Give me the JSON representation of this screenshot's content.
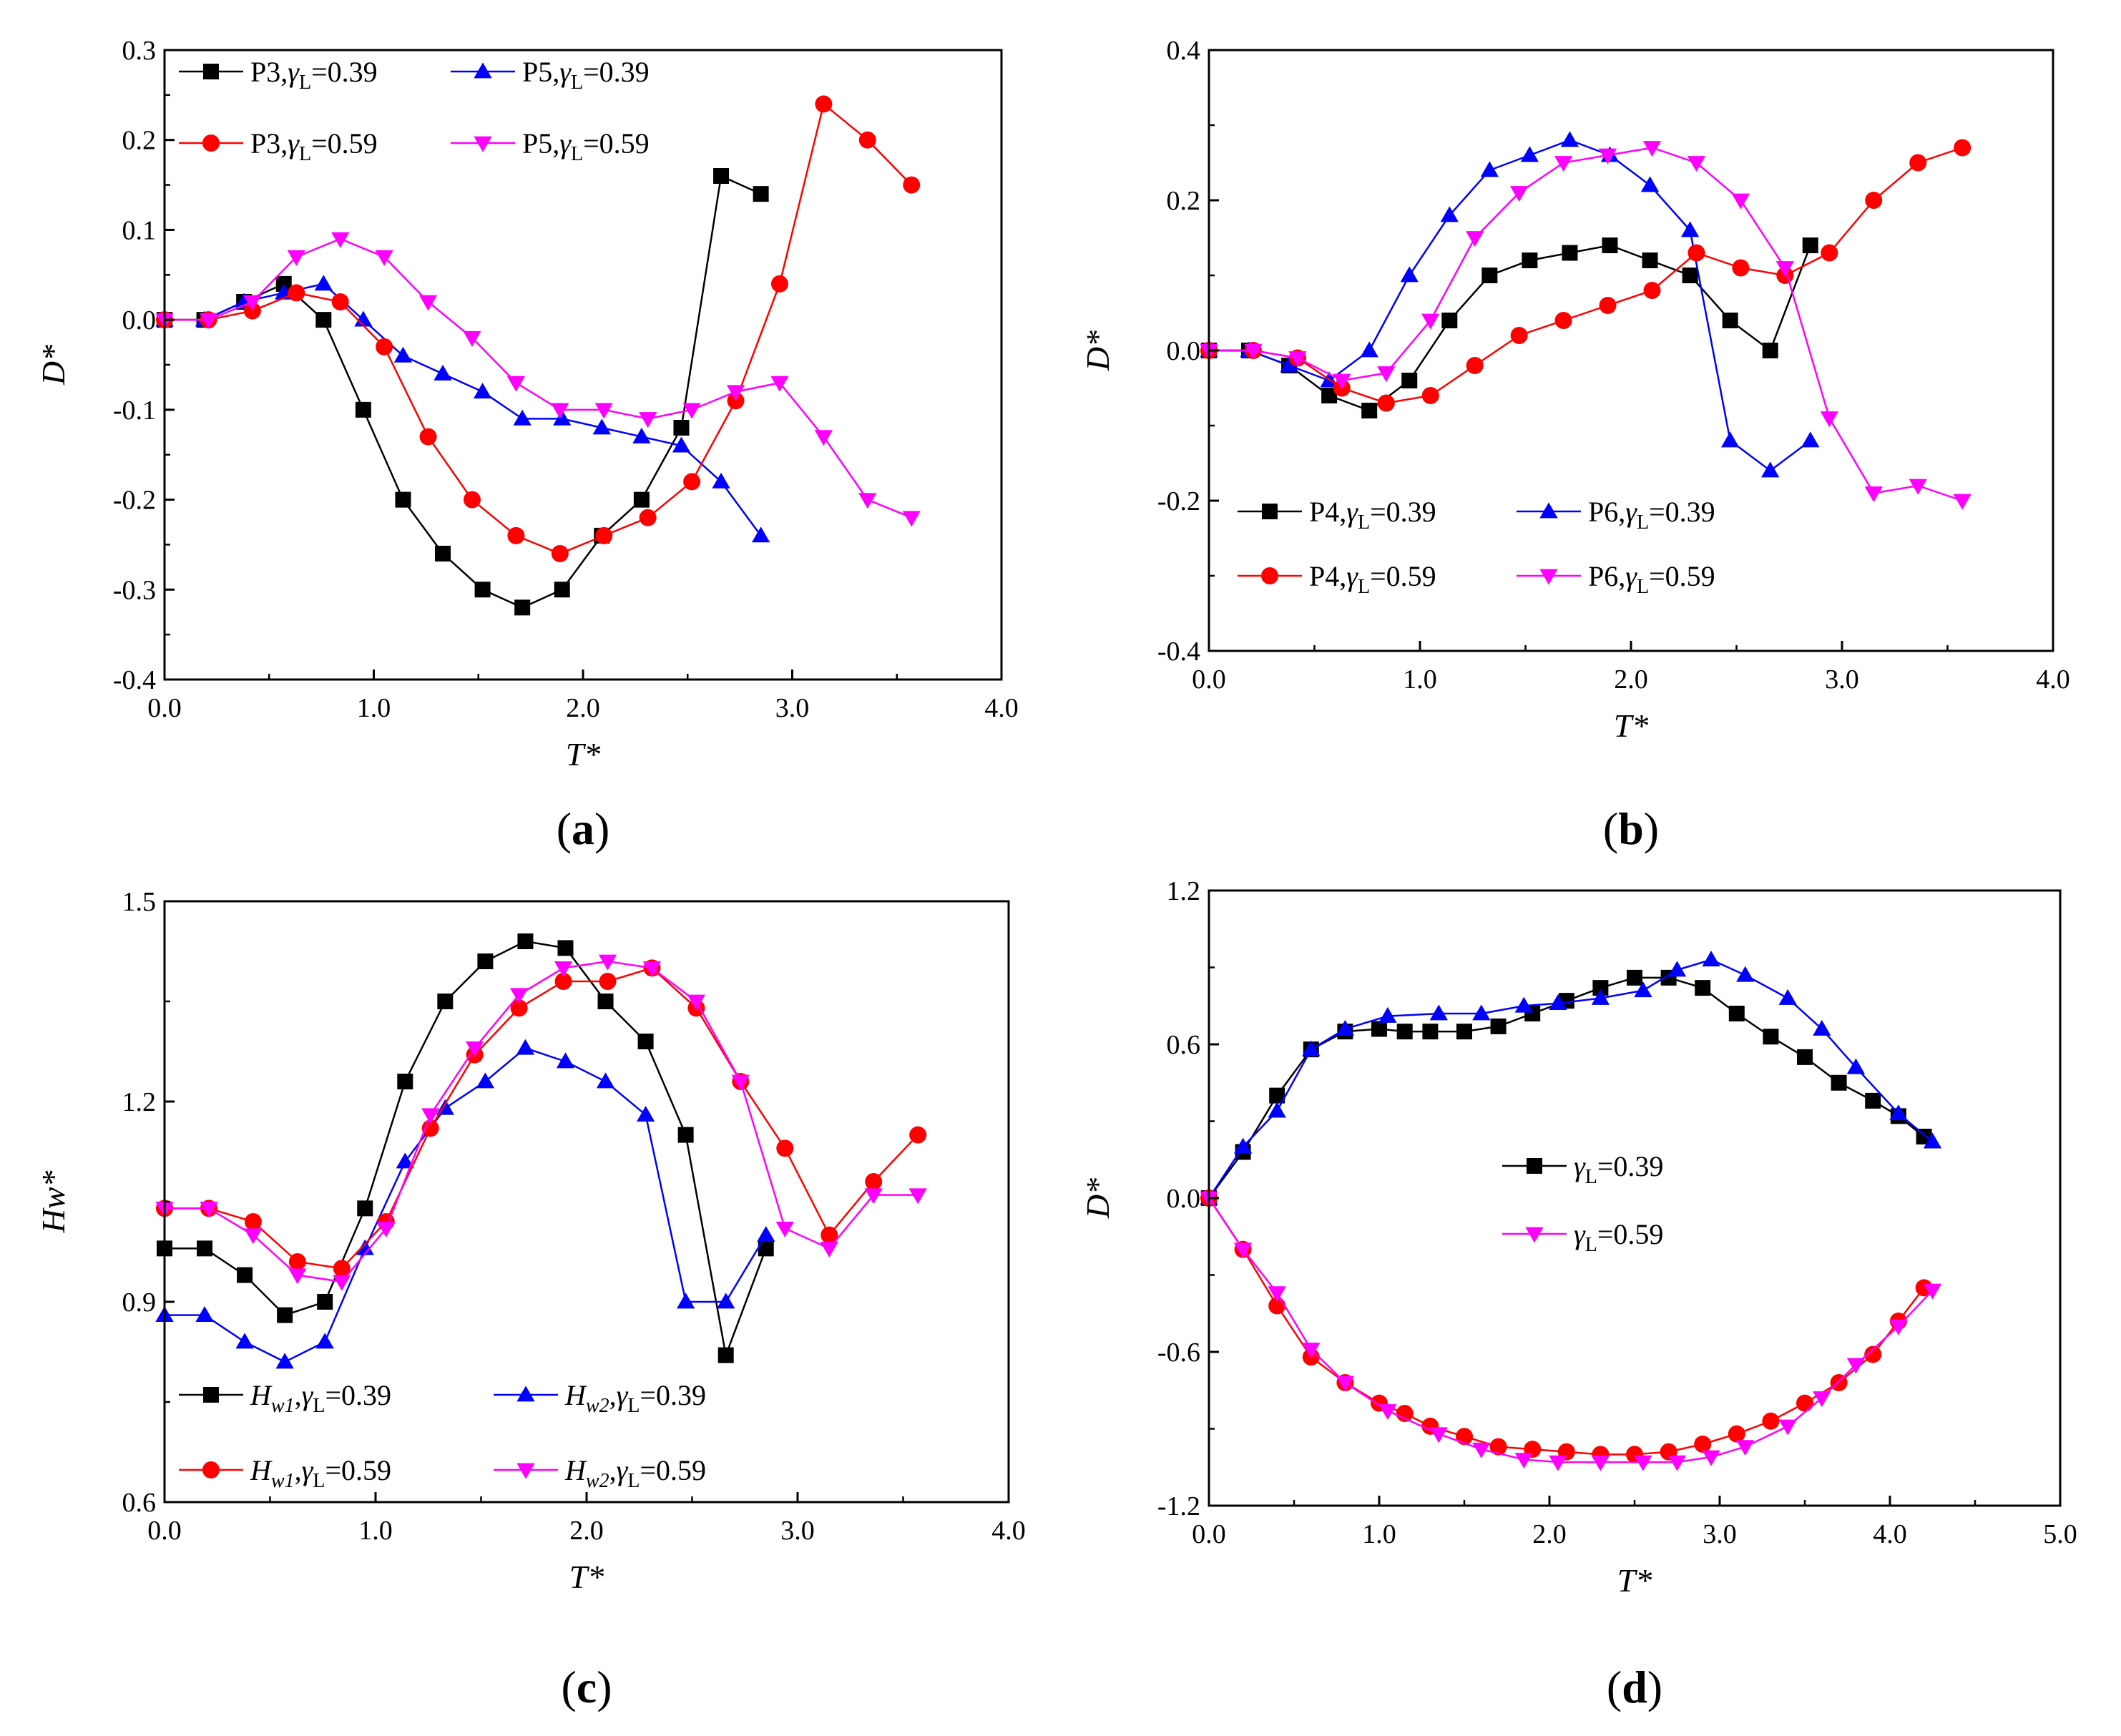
{
  "chart_data": [
    {
      "id": "a",
      "panel_label": "a",
      "type": "line",
      "xlabel": "T*",
      "ylabel": "D*",
      "xlim": [
        0,
        4
      ],
      "ylim": [
        -0.4,
        0.3
      ],
      "xticks": [
        "0.0",
        "1.0",
        "2.0",
        "3.0",
        "4.0"
      ],
      "yticks": [
        "-0.4",
        "-0.3",
        "-0.2",
        "-0.1",
        "0.0",
        "0.1",
        "0.2",
        "0.3"
      ],
      "legend_placement": "top-left",
      "series": [
        {
          "name": "P3,γL=0.39",
          "color": "#000000",
          "marker": "square",
          "x": [
            0,
            0.19,
            0.38,
            0.57,
            0.76,
            0.95,
            1.14,
            1.33,
            1.52,
            1.71,
            1.9,
            2.09,
            2.28,
            2.47,
            2.66,
            2.85
          ],
          "y": [
            0,
            0,
            0.02,
            0.04,
            0,
            -0.1,
            -0.2,
            -0.26,
            -0.3,
            -0.32,
            -0.3,
            -0.24,
            -0.2,
            -0.12,
            0.16,
            0.14
          ]
        },
        {
          "name": "P5,γL=0.39",
          "color": "#0000ff",
          "marker": "triangle-up",
          "x": [
            0,
            0.19,
            0.38,
            0.57,
            0.76,
            0.95,
            1.14,
            1.33,
            1.52,
            1.71,
            1.9,
            2.09,
            2.28,
            2.47,
            2.66,
            2.85
          ],
          "y": [
            0,
            0,
            0.02,
            0.03,
            0.04,
            0,
            -0.04,
            -0.06,
            -0.08,
            -0.11,
            -0.11,
            -0.12,
            -0.13,
            -0.14,
            -0.18,
            -0.24
          ]
        },
        {
          "name": "P3,γL=0.59",
          "color": "#ff0000",
          "marker": "circle",
          "x": [
            0,
            0.21,
            0.42,
            0.63,
            0.84,
            1.05,
            1.26,
            1.47,
            1.68,
            1.89,
            2.1,
            2.31,
            2.52,
            2.73,
            2.94,
            3.15,
            3.36,
            3.57
          ],
          "y": [
            0,
            0,
            0.01,
            0.03,
            0.02,
            -0.03,
            -0.13,
            -0.2,
            -0.24,
            -0.26,
            -0.24,
            -0.22,
            -0.18,
            -0.09,
            0.04,
            0.24,
            0.2,
            0.15
          ]
        },
        {
          "name": "P5,γL=0.59",
          "color": "#ff00ff",
          "marker": "triangle-down",
          "x": [
            0,
            0.21,
            0.42,
            0.63,
            0.84,
            1.05,
            1.26,
            1.47,
            1.68,
            1.89,
            2.1,
            2.31,
            2.52,
            2.73,
            2.94,
            3.15,
            3.36,
            3.57
          ],
          "y": [
            0,
            0,
            0.02,
            0.07,
            0.09,
            0.07,
            0.02,
            -0.02,
            -0.07,
            -0.1,
            -0.1,
            -0.11,
            -0.1,
            -0.08,
            -0.07,
            -0.13,
            -0.2,
            -0.22
          ]
        }
      ]
    },
    {
      "id": "b",
      "panel_label": "b",
      "type": "line",
      "xlabel": "T*",
      "ylabel": "D*",
      "xlim": [
        0,
        4
      ],
      "ylim": [
        -0.4,
        0.4
      ],
      "xticks": [
        "0.0",
        "1.0",
        "2.0",
        "3.0",
        "4.0"
      ],
      "yticks": [
        "-0.4",
        "-0.2",
        "0.0",
        "0.2",
        "0.4"
      ],
      "legend_placement": "bottom-left",
      "series": [
        {
          "name": "P4,γL=0.39",
          "color": "#000000",
          "marker": "square",
          "x": [
            0,
            0.19,
            0.38,
            0.57,
            0.76,
            0.95,
            1.14,
            1.33,
            1.52,
            1.71,
            1.9,
            2.09,
            2.28,
            2.47,
            2.66,
            2.85
          ],
          "y": [
            0,
            0,
            -0.02,
            -0.06,
            -0.08,
            -0.04,
            0.04,
            0.1,
            0.12,
            0.13,
            0.14,
            0.12,
            0.1,
            0.04,
            0,
            0.14
          ]
        },
        {
          "name": "P6,γL=0.39",
          "color": "#0000ff",
          "marker": "triangle-up",
          "x": [
            0,
            0.19,
            0.38,
            0.57,
            0.76,
            0.95,
            1.14,
            1.33,
            1.52,
            1.71,
            1.9,
            2.09,
            2.28,
            2.47,
            2.66,
            2.85
          ],
          "y": [
            0,
            0,
            -0.02,
            -0.04,
            0,
            0.1,
            0.18,
            0.24,
            0.26,
            0.28,
            0.26,
            0.22,
            0.16,
            -0.12,
            -0.16,
            -0.12
          ]
        },
        {
          "name": "P4,γL=0.59",
          "color": "#ff0000",
          "marker": "circle",
          "x": [
            0,
            0.21,
            0.42,
            0.63,
            0.84,
            1.05,
            1.26,
            1.47,
            1.68,
            1.89,
            2.1,
            2.31,
            2.52,
            2.73,
            2.94,
            3.15,
            3.36,
            3.57
          ],
          "y": [
            0,
            0,
            -0.01,
            -0.05,
            -0.07,
            -0.06,
            -0.02,
            0.02,
            0.04,
            0.06,
            0.08,
            0.13,
            0.11,
            0.1,
            0.13,
            0.2,
            0.25,
            0.27
          ]
        },
        {
          "name": "P6,γL=0.59",
          "color": "#ff00ff",
          "marker": "triangle-down",
          "x": [
            0,
            0.21,
            0.42,
            0.63,
            0.84,
            1.05,
            1.26,
            1.47,
            1.68,
            1.89,
            2.1,
            2.31,
            2.52,
            2.73,
            2.94,
            3.15,
            3.36,
            3.57
          ],
          "y": [
            0,
            0,
            -0.01,
            -0.04,
            -0.03,
            0.04,
            0.15,
            0.21,
            0.25,
            0.26,
            0.27,
            0.25,
            0.2,
            0.11,
            -0.09,
            -0.19,
            -0.18,
            -0.2
          ]
        }
      ]
    },
    {
      "id": "c",
      "panel_label": "c",
      "type": "line",
      "xlabel": "T*",
      "ylabel": "Hw*",
      "xlim": [
        0,
        4
      ],
      "ylim": [
        0.6,
        1.5
      ],
      "xticks": [
        "0.0",
        "1.0",
        "2.0",
        "3.0",
        "4.0"
      ],
      "yticks": [
        "0.6",
        "0.9",
        "1.2",
        "1.5"
      ],
      "legend_placement": "bottom-left",
      "series": [
        {
          "name": "Hw1,γL=0.39",
          "color": "#000000",
          "marker": "square",
          "x": [
            0,
            0.19,
            0.38,
            0.57,
            0.76,
            0.95,
            1.14,
            1.33,
            1.52,
            1.71,
            1.9,
            2.09,
            2.28,
            2.47,
            2.66,
            2.85
          ],
          "y": [
            0.98,
            0.98,
            0.94,
            0.88,
            0.9,
            1.04,
            1.23,
            1.35,
            1.41,
            1.44,
            1.43,
            1.35,
            1.29,
            1.15,
            0.82,
            0.98
          ]
        },
        {
          "name": "Hw2,γL=0.39",
          "color": "#0000ff",
          "marker": "triangle-up",
          "x": [
            0,
            0.19,
            0.38,
            0.57,
            0.76,
            0.95,
            1.14,
            1.33,
            1.52,
            1.71,
            1.9,
            2.09,
            2.28,
            2.47,
            2.66,
            2.85
          ],
          "y": [
            0.88,
            0.88,
            0.84,
            0.81,
            0.84,
            0.98,
            1.11,
            1.19,
            1.23,
            1.28,
            1.26,
            1.23,
            1.18,
            0.9,
            0.9,
            1.0
          ]
        },
        {
          "name": "Hw1,γL=0.59",
          "color": "#ff0000",
          "marker": "circle",
          "x": [
            0,
            0.21,
            0.42,
            0.63,
            0.84,
            1.05,
            1.26,
            1.47,
            1.68,
            1.89,
            2.1,
            2.31,
            2.52,
            2.73,
            2.94,
            3.15,
            3.36,
            3.57
          ],
          "y": [
            1.04,
            1.04,
            1.02,
            0.96,
            0.95,
            1.02,
            1.16,
            1.27,
            1.34,
            1.38,
            1.38,
            1.4,
            1.34,
            1.23,
            1.13,
            1.0,
            1.08,
            1.15
          ]
        },
        {
          "name": "Hw2,γL=0.59",
          "color": "#ff00ff",
          "marker": "triangle-down",
          "x": [
            0,
            0.21,
            0.42,
            0.63,
            0.84,
            1.05,
            1.26,
            1.47,
            1.68,
            1.89,
            2.1,
            2.31,
            2.52,
            2.73,
            2.94,
            3.15,
            3.36,
            3.57
          ],
          "y": [
            1.04,
            1.04,
            1.0,
            0.94,
            0.93,
            1.01,
            1.18,
            1.28,
            1.36,
            1.4,
            1.41,
            1.4,
            1.35,
            1.23,
            1.01,
            0.98,
            1.06,
            1.06
          ]
        }
      ]
    },
    {
      "id": "d",
      "panel_label": "d",
      "type": "line",
      "xlabel": "T*",
      "ylabel": "D*",
      "xlim": [
        0,
        5
      ],
      "ylim": [
        -1.2,
        1.2
      ],
      "xticks": [
        "0.0",
        "1.0",
        "2.0",
        "3.0",
        "4.0",
        "5.0"
      ],
      "yticks": [
        "-1.2",
        "-0.6",
        "0.0",
        "0.6",
        "1.2"
      ],
      "legend_placement": "center",
      "series": [
        {
          "name": "γL=0.39",
          "color": "#000000",
          "marker": "square",
          "x": [
            0,
            0.2,
            0.4,
            0.6,
            0.8,
            1.0,
            1.15,
            1.3,
            1.5,
            1.7,
            1.9,
            2.1,
            2.3,
            2.5,
            2.7,
            2.9,
            3.1,
            3.3,
            3.5,
            3.7,
            3.9,
            4.05,
            4.2
          ],
          "y": [
            0,
            0.18,
            0.4,
            0.58,
            0.65,
            0.66,
            0.65,
            0.65,
            0.65,
            0.67,
            0.72,
            0.77,
            0.82,
            0.86,
            0.86,
            0.82,
            0.72,
            0.63,
            0.55,
            0.45,
            0.38,
            0.32,
            0.24
          ]
        },
        {
          "name": "",
          "color": "#0000ff",
          "marker": "triangle-up",
          "x": [
            0,
            0.2,
            0.4,
            0.6,
            0.8,
            1.05,
            1.35,
            1.6,
            1.85,
            2.05,
            2.3,
            2.55,
            2.75,
            2.95,
            3.15,
            3.4,
            3.6,
            3.8,
            4.05,
            4.25
          ],
          "y": [
            0,
            0.2,
            0.34,
            0.58,
            0.66,
            0.71,
            0.72,
            0.72,
            0.75,
            0.76,
            0.78,
            0.81,
            0.89,
            0.93,
            0.87,
            0.78,
            0.66,
            0.51,
            0.33,
            0.22
          ]
        },
        {
          "name": "",
          "color": "#ff0000",
          "marker": "circle",
          "x": [
            0,
            0.2,
            0.4,
            0.6,
            0.8,
            1.0,
            1.15,
            1.3,
            1.5,
            1.7,
            1.9,
            2.1,
            2.3,
            2.5,
            2.7,
            2.9,
            3.1,
            3.3,
            3.5,
            3.7,
            3.9,
            4.05,
            4.2
          ],
          "y": [
            0,
            -0.2,
            -0.42,
            -0.62,
            -0.72,
            -0.8,
            -0.84,
            -0.89,
            -0.93,
            -0.97,
            -0.98,
            -0.99,
            -1.0,
            -1.0,
            -0.99,
            -0.96,
            -0.92,
            -0.87,
            -0.8,
            -0.72,
            -0.61,
            -0.48,
            -0.35
          ]
        },
        {
          "name": "γL=0.59",
          "color": "#ff00ff",
          "marker": "triangle-down",
          "x": [
            0,
            0.2,
            0.4,
            0.6,
            0.8,
            1.05,
            1.35,
            1.6,
            1.85,
            2.05,
            2.3,
            2.55,
            2.75,
            2.95,
            3.15,
            3.4,
            3.6,
            3.8,
            4.05,
            4.25
          ],
          "y": [
            0,
            -0.2,
            -0.37,
            -0.59,
            -0.72,
            -0.83,
            -0.92,
            -0.98,
            -1.02,
            -1.03,
            -1.03,
            -1.03,
            -1.03,
            -1.01,
            -0.97,
            -0.89,
            -0.78,
            -0.65,
            -0.5,
            -0.36
          ]
        }
      ]
    }
  ]
}
